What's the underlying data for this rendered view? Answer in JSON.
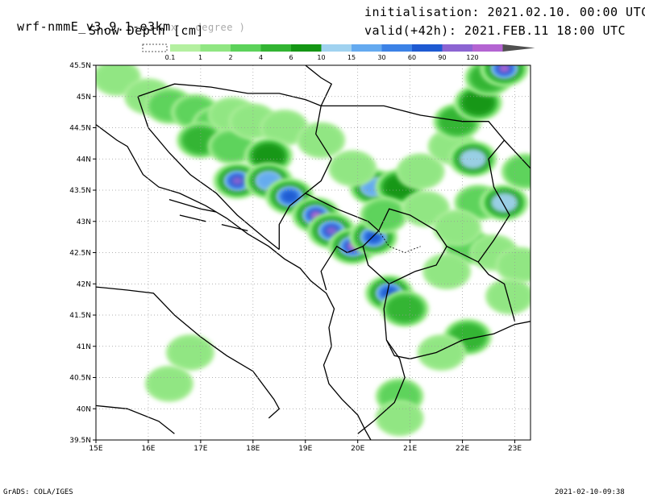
{
  "header": {
    "model_main": "wrf-nmmE_v3.9.1-e3km",
    "model_suffix": "x . degree )",
    "variable": "Snow Depth [cm]",
    "init_label": "initialisation: 2021.02.10. 00:00 UTC",
    "valid_label": "valid(+42h): 2021.FEB.11 18:00 UTC"
  },
  "colorbar": {
    "labels": [
      "0.1",
      "1",
      "2",
      "4",
      "6",
      "10",
      "15",
      "30",
      "60",
      "90",
      "120"
    ],
    "colors": [
      "#b4f0a0",
      "#90e682",
      "#5cd25a",
      "#32b432",
      "#149614",
      "#a0d2f0",
      "#64aaf0",
      "#3c82e6",
      "#1e5ad2",
      "#8c64d2",
      "#b464d2",
      "#505050"
    ]
  },
  "map": {
    "lon_labels": [
      "15E",
      "16E",
      "17E",
      "18E",
      "19E",
      "20E",
      "21E",
      "22E",
      "23E"
    ],
    "lat_labels": [
      "45.5N",
      "45N",
      "44.5N",
      "44N",
      "43.5N",
      "43N",
      "42.5N",
      "42N",
      "41.5N",
      "41N",
      "40.5N",
      "40N",
      "39.5N"
    ],
    "lon_range": [
      15,
      23.3
    ],
    "lat_range": [
      39.5,
      45.5
    ],
    "grid": "dotted",
    "snow_cells": [
      {
        "lon": 15.4,
        "lat": 45.3,
        "level": 1
      },
      {
        "lon": 16.0,
        "lat": 45.0,
        "level": 1
      },
      {
        "lon": 16.4,
        "lat": 44.85,
        "level": 2
      },
      {
        "lon": 16.9,
        "lat": 44.75,
        "level": 2
      },
      {
        "lon": 17.3,
        "lat": 44.55,
        "level": 2
      },
      {
        "lon": 17.6,
        "lat": 44.7,
        "level": 1
      },
      {
        "lon": 17.0,
        "lat": 44.3,
        "level": 3
      },
      {
        "lon": 17.6,
        "lat": 44.2,
        "level": 2
      },
      {
        "lon": 18.0,
        "lat": 44.6,
        "level": 1
      },
      {
        "lon": 18.6,
        "lat": 44.5,
        "level": 1
      },
      {
        "lon": 19.3,
        "lat": 44.3,
        "level": 1
      },
      {
        "lon": 18.3,
        "lat": 44.05,
        "level": 4
      },
      {
        "lon": 17.7,
        "lat": 43.65,
        "level": 9
      },
      {
        "lon": 18.3,
        "lat": 43.65,
        "level": 6
      },
      {
        "lon": 18.7,
        "lat": 43.4,
        "level": 8
      },
      {
        "lon": 19.2,
        "lat": 43.1,
        "level": 10
      },
      {
        "lon": 19.5,
        "lat": 42.85,
        "level": 9
      },
      {
        "lon": 19.9,
        "lat": 42.6,
        "level": 10
      },
      {
        "lon": 20.3,
        "lat": 42.75,
        "level": 8
      },
      {
        "lon": 20.6,
        "lat": 41.85,
        "level": 8
      },
      {
        "lon": 20.9,
        "lat": 41.6,
        "level": 3
      },
      {
        "lon": 20.3,
        "lat": 43.55,
        "level": 6
      },
      {
        "lon": 20.8,
        "lat": 43.55,
        "level": 4
      },
      {
        "lon": 20.5,
        "lat": 43.1,
        "level": 2
      },
      {
        "lon": 21.2,
        "lat": 43.8,
        "level": 1
      },
      {
        "lon": 21.8,
        "lat": 44.2,
        "level": 1
      },
      {
        "lon": 22.2,
        "lat": 44.0,
        "level": 5
      },
      {
        "lon": 21.9,
        "lat": 44.6,
        "level": 3
      },
      {
        "lon": 22.3,
        "lat": 44.9,
        "level": 4
      },
      {
        "lon": 22.5,
        "lat": 45.3,
        "level": 3
      },
      {
        "lon": 22.8,
        "lat": 45.45,
        "level": 10
      },
      {
        "lon": 22.3,
        "lat": 43.3,
        "level": 2
      },
      {
        "lon": 22.8,
        "lat": 43.3,
        "level": 5
      },
      {
        "lon": 22.1,
        "lat": 42.6,
        "level": 2
      },
      {
        "lon": 22.6,
        "lat": 42.5,
        "level": 1
      },
      {
        "lon": 23.1,
        "lat": 42.3,
        "level": 1
      },
      {
        "lon": 21.7,
        "lat": 42.2,
        "level": 1
      },
      {
        "lon": 22.1,
        "lat": 41.15,
        "level": 3
      },
      {
        "lon": 21.6,
        "lat": 40.9,
        "level": 1
      },
      {
        "lon": 20.8,
        "lat": 40.2,
        "level": 2
      },
      {
        "lon": 20.8,
        "lat": 39.85,
        "level": 1
      },
      {
        "lon": 16.8,
        "lat": 40.9,
        "level": 1
      },
      {
        "lon": 16.4,
        "lat": 40.4,
        "level": 1
      },
      {
        "lon": 21.3,
        "lat": 43.2,
        "level": 1
      },
      {
        "lon": 21.9,
        "lat": 42.9,
        "level": 1
      },
      {
        "lon": 19.9,
        "lat": 43.85,
        "level": 1
      },
      {
        "lon": 22.9,
        "lat": 41.8,
        "level": 1
      },
      {
        "lon": 23.2,
        "lat": 43.8,
        "level": 2
      }
    ]
  },
  "footer": {
    "left": "GrADS: COLA/IGES",
    "right": "2021-02-10-09:38"
  }
}
